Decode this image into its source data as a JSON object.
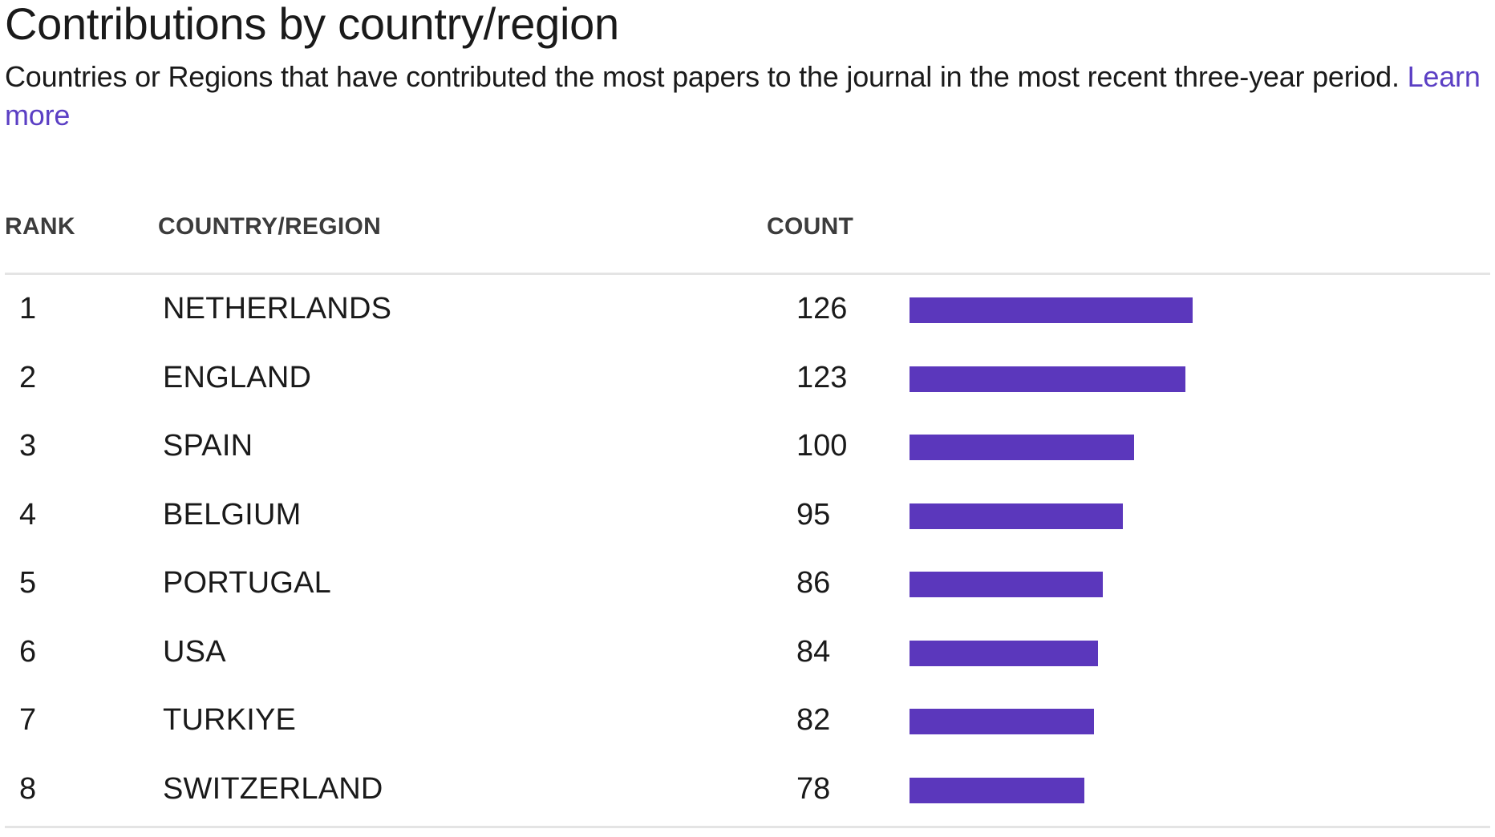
{
  "header": {
    "title": "Contributions by country/region",
    "subtitle": "Countries or Regions that have contributed the most papers to the journal in the most recent three-year period.",
    "learn_more": "Learn more"
  },
  "colors": {
    "accent": "#5b37bc",
    "link": "#5b3fc4",
    "divider": "#e4e4e4"
  },
  "table": {
    "columns": [
      "RANK",
      "COUNTRY/REGION",
      "COUNT"
    ]
  },
  "chart_data": {
    "type": "bar",
    "orientation": "horizontal",
    "title": "Contributions by country/region",
    "xlabel": "COUNT",
    "ylabel": "COUNTRY/REGION",
    "categories": [
      "NETHERLANDS",
      "ENGLAND",
      "SPAIN",
      "BELGIUM",
      "PORTUGAL",
      "USA",
      "TURKIYE",
      "SWITZERLAND"
    ],
    "ranks": [
      1,
      2,
      3,
      4,
      5,
      6,
      7,
      8
    ],
    "values": [
      126,
      123,
      100,
      95,
      86,
      84,
      82,
      78
    ],
    "grid": false,
    "legend": "none"
  }
}
